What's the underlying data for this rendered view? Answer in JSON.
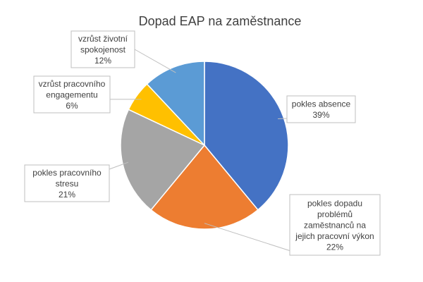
{
  "chart_data": {
    "type": "pie",
    "title": "Dopad EAP na zaměstnance",
    "categories": [
      "pokles absence",
      "pokles dopadu problémů zaměstnanců na jejich pracovní výkon",
      "pokles pracovního stresu",
      "vzrůst pracovního engagementu",
      "vzrůst životní spokojenost"
    ],
    "values": [
      39,
      22,
      21,
      6,
      12
    ],
    "value_labels": [
      "39%",
      "22%",
      "21%",
      "6%",
      "12%"
    ],
    "label_lines": [
      [
        "pokles absence",
        "39%"
      ],
      [
        "pokles dopadu",
        "problémů",
        "zaměstnanců na",
        "jejich pracovní výkon",
        "22%"
      ],
      [
        "pokles pracovního",
        "stresu",
        "21%"
      ],
      [
        "vzrůst pracovního",
        "engagementu",
        "6%"
      ],
      [
        "vzrůst životní",
        "spokojenost",
        "12%"
      ]
    ],
    "colors": [
      "#4472C4",
      "#ED7D31",
      "#A5A5A5",
      "#FFC000",
      "#5B9BD5"
    ],
    "start_angle": "12 o'clock",
    "direction": "clockwise",
    "legend": "none"
  }
}
